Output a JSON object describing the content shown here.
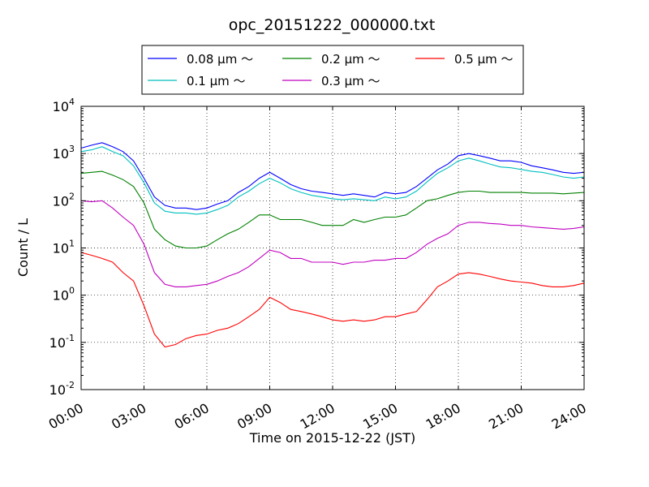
{
  "chart_data": {
    "type": "line",
    "title": "opc_20151222_000000.txt",
    "xlabel": "Time on 2015-12-22 (JST)",
    "ylabel": "Count / L",
    "yscale": "log",
    "ylim": [
      0.01,
      10000
    ],
    "xlim_hours": [
      0,
      24
    ],
    "x_tick_labels": [
      "00:00",
      "03:00",
      "06:00",
      "09:00",
      "12:00",
      "15:00",
      "18:00",
      "21:00",
      "24:00"
    ],
    "y_tick_labels": [
      {
        "base": "10",
        "exp": "-2"
      },
      {
        "base": "10",
        "exp": "-1"
      },
      {
        "base": "10",
        "exp": "0"
      },
      {
        "base": "10",
        "exp": "1"
      },
      {
        "base": "10",
        "exp": "2"
      },
      {
        "base": "10",
        "exp": "3"
      },
      {
        "base": "10",
        "exp": "4"
      }
    ],
    "grid": true,
    "legend_position": "top-center",
    "x_hours": [
      0,
      0.5,
      1,
      1.5,
      2,
      2.5,
      3,
      3.5,
      4,
      4.5,
      5,
      5.5,
      6,
      6.5,
      7,
      7.5,
      8,
      8.5,
      9,
      9.5,
      10,
      10.5,
      11,
      11.5,
      12,
      12.5,
      13,
      13.5,
      14,
      14.5,
      15,
      15.5,
      16,
      16.5,
      17,
      17.5,
      18,
      18.5,
      19,
      19.5,
      20,
      20.5,
      21,
      21.5,
      22,
      22.5,
      23,
      23.5,
      24
    ],
    "series": [
      {
        "name": "0.08 μm ～",
        "color": "#0000ff",
        "values": [
          1300,
          1500,
          1700,
          1400,
          1100,
          700,
          300,
          120,
          80,
          70,
          70,
          65,
          70,
          85,
          100,
          150,
          200,
          300,
          400,
          300,
          220,
          180,
          160,
          150,
          140,
          130,
          140,
          130,
          120,
          150,
          140,
          150,
          200,
          300,
          450,
          600,
          900,
          1000,
          900,
          800,
          700,
          700,
          650,
          550,
          500,
          450,
          400,
          380,
          400
        ]
      },
      {
        "name": "0.1 μm ～",
        "color": "#00bfbf",
        "values": [
          1100,
          1200,
          1400,
          1100,
          900,
          550,
          240,
          90,
          60,
          55,
          55,
          52,
          55,
          65,
          80,
          120,
          160,
          230,
          300,
          240,
          180,
          150,
          130,
          120,
          110,
          105,
          110,
          105,
          100,
          120,
          110,
          120,
          160,
          250,
          380,
          500,
          700,
          800,
          700,
          600,
          520,
          500,
          460,
          420,
          400,
          360,
          320,
          300,
          320
        ]
      },
      {
        "name": "0.2 μm ～",
        "color": "#008000",
        "values": [
          380,
          400,
          420,
          350,
          280,
          200,
          90,
          25,
          15,
          11,
          10,
          10,
          11,
          15,
          20,
          25,
          35,
          50,
          50,
          40,
          40,
          40,
          35,
          30,
          30,
          30,
          40,
          35,
          40,
          45,
          45,
          50,
          70,
          100,
          110,
          130,
          150,
          160,
          160,
          150,
          150,
          150,
          150,
          145,
          145,
          145,
          140,
          145,
          150
        ]
      },
      {
        "name": "0.3 μm ～",
        "color": "#bf00bf",
        "values": [
          100,
          95,
          100,
          70,
          45,
          30,
          12,
          3,
          1.7,
          1.5,
          1.5,
          1.6,
          1.7,
          2,
          2.5,
          3,
          4,
          6,
          9,
          8,
          6,
          6,
          5,
          5,
          5,
          4.5,
          5,
          5,
          5.5,
          5.5,
          6,
          6,
          8,
          12,
          16,
          20,
          30,
          35,
          35,
          33,
          32,
          30,
          30,
          28,
          27,
          26,
          25,
          26,
          28
        ]
      },
      {
        "name": "0.5 μm ～",
        "color": "#ff0000",
        "values": [
          8,
          7,
          6,
          5,
          3,
          2,
          0.6,
          0.15,
          0.08,
          0.09,
          0.12,
          0.14,
          0.15,
          0.18,
          0.2,
          0.25,
          0.35,
          0.5,
          0.9,
          0.7,
          0.5,
          0.45,
          0.4,
          0.35,
          0.3,
          0.28,
          0.3,
          0.28,
          0.3,
          0.35,
          0.35,
          0.4,
          0.45,
          0.8,
          1.5,
          2,
          2.8,
          3,
          2.8,
          2.5,
          2.2,
          2,
          1.9,
          1.8,
          1.6,
          1.5,
          1.5,
          1.6,
          1.8
        ]
      }
    ]
  }
}
